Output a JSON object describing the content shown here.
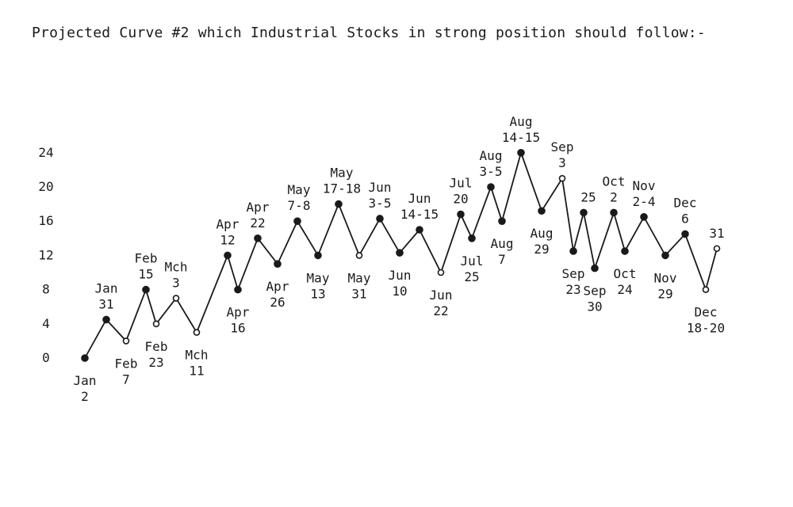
{
  "title": "Projected Curve #2 which Industrial Stocks in strong position should follow:-",
  "chart_data": {
    "type": "line",
    "title": "Projected Curve #2 which Industrial Stocks in strong position should follow:-",
    "ylim": [
      0,
      24
    ],
    "y_ticks": [
      "0",
      "4",
      "8",
      "12",
      "16",
      "20",
      "24"
    ],
    "grid": false,
    "series": [
      {
        "points": [
          {
            "label": [
              "Jan",
              "2"
            ],
            "y": 0,
            "marker": "filled"
          },
          {
            "label": [
              "Jan",
              "31"
            ],
            "y": 4.5,
            "marker": "filled"
          },
          {
            "label": [
              "Feb",
              "7"
            ],
            "y": 2,
            "marker": "open"
          },
          {
            "label": [
              "Feb",
              "15"
            ],
            "y": 8,
            "marker": "filled"
          },
          {
            "label": [
              "Feb",
              "23"
            ],
            "y": 4,
            "marker": "open"
          },
          {
            "label": [
              "Mch",
              "3"
            ],
            "y": 7,
            "marker": "open"
          },
          {
            "label": [
              "Mch",
              "11"
            ],
            "y": 3,
            "marker": "open"
          },
          {
            "label": [
              "Apr",
              "12"
            ],
            "y": 12,
            "marker": "filled"
          },
          {
            "label": [
              "Apr",
              "16"
            ],
            "y": 8,
            "marker": "filled"
          },
          {
            "label": [
              "Apr",
              "22"
            ],
            "y": 14,
            "marker": "filled"
          },
          {
            "label": [
              "Apr",
              "26"
            ],
            "y": 11,
            "marker": "filled"
          },
          {
            "label": [
              "May",
              "7-8"
            ],
            "y": 16,
            "marker": "filled"
          },
          {
            "label": [
              "May",
              "13"
            ],
            "y": 12,
            "marker": "filled"
          },
          {
            "label": [
              "May",
              "17-18"
            ],
            "y": 18,
            "marker": "filled"
          },
          {
            "label": [
              "May",
              "31"
            ],
            "y": 12,
            "marker": "open"
          },
          {
            "label": [
              "Jun",
              "3-5"
            ],
            "y": 16.3,
            "marker": "filled"
          },
          {
            "label": [
              "Jun",
              "10"
            ],
            "y": 12.3,
            "marker": "filled"
          },
          {
            "label": [
              "Jun",
              "14-15"
            ],
            "y": 15,
            "marker": "filled"
          },
          {
            "label": [
              "Jun",
              "22"
            ],
            "y": 10,
            "marker": "open"
          },
          {
            "label": [
              "Jul",
              "20"
            ],
            "y": 16.8,
            "marker": "filled"
          },
          {
            "label": [
              "Jul",
              "25"
            ],
            "y": 14,
            "marker": "filled"
          },
          {
            "label": [
              "Aug",
              "3-5"
            ],
            "y": 20,
            "marker": "filled"
          },
          {
            "label": [
              "Aug",
              "7"
            ],
            "y": 16,
            "marker": "filled"
          },
          {
            "label": [
              "Aug",
              "14-15"
            ],
            "y": 24,
            "marker": "filled"
          },
          {
            "label": [
              "Aug",
              "29"
            ],
            "y": 17.2,
            "marker": "filled"
          },
          {
            "label": [
              "Sep",
              "3"
            ],
            "y": 21,
            "marker": "open"
          },
          {
            "label": [
              "Sep",
              "23"
            ],
            "y": 12.5,
            "marker": "filled"
          },
          {
            "label": [
              "",
              "25"
            ],
            "y": 17,
            "marker": "filled"
          },
          {
            "label": [
              "Sep",
              "30"
            ],
            "y": 10.5,
            "marker": "filled"
          },
          {
            "label": [
              "Oct",
              "2"
            ],
            "y": 17,
            "marker": "filled"
          },
          {
            "label": [
              "Oct",
              "24"
            ],
            "y": 12.5,
            "marker": "filled"
          },
          {
            "label": [
              "Nov",
              "2-4"
            ],
            "y": 16.5,
            "marker": "filled"
          },
          {
            "label": [
              "Nov",
              "29"
            ],
            "y": 12,
            "marker": "filled"
          },
          {
            "label": [
              "Dec",
              "6"
            ],
            "y": 14.5,
            "marker": "filled"
          },
          {
            "label": [
              "Dec",
              "18-20"
            ],
            "y": 8,
            "marker": "open"
          },
          {
            "label": [
              "",
              "31"
            ],
            "y": 12.8,
            "marker": "open"
          }
        ]
      }
    ]
  }
}
